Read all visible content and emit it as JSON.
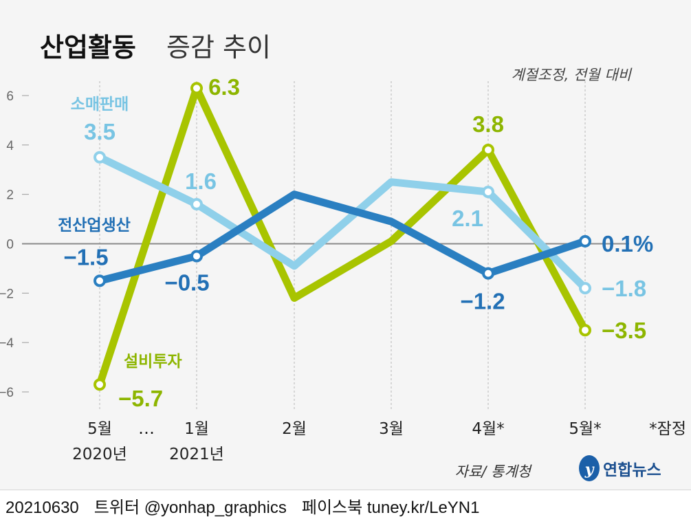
{
  "title_bold": "산업활동",
  "title_rest": "증감 추이",
  "note": "계절조정, 전월 대비",
  "provisional_note": "*잠정",
  "source": "자료/ 통계청",
  "logo_text": "연합뉴스",
  "footer": {
    "date": "20210630",
    "twitter": "트위터 @yonhap_graphics",
    "facebook": "페이스북 tuney.kr/LeYN1"
  },
  "ellipsis": "…",
  "chart_data": {
    "type": "line",
    "categories": [
      "5월",
      "1월",
      "2월",
      "3월",
      "4월*",
      "5월*"
    ],
    "x_years": [
      "2020년",
      "2021년",
      "",
      "",
      "",
      ""
    ],
    "yticks": [
      "6",
      "4",
      "2",
      "0",
      "−2",
      "−4",
      "−6"
    ],
    "ylim": [
      -6,
      6
    ],
    "grid": true,
    "series": [
      {
        "name": "설비투자",
        "color": "#a8c400",
        "label_color": "#8db500",
        "values": [
          -5.7,
          6.3,
          -2.2,
          0.1,
          3.8,
          -3.5
        ],
        "labels": [
          "−5.7",
          "6.3",
          "",
          "",
          "3.8",
          "−3.5"
        ]
      },
      {
        "name": "소매판매",
        "color": "#8fd0ea",
        "label_color": "#78c4e3",
        "values": [
          3.5,
          1.6,
          -0.9,
          2.5,
          2.1,
          -1.8
        ],
        "labels": [
          "3.5",
          "1.6",
          "",
          "",
          "2.1",
          "−1.8"
        ]
      },
      {
        "name": "전산업생산",
        "color": "#2a7fc1",
        "label_color": "#2270b5",
        "values": [
          -1.5,
          -0.5,
          2.0,
          0.9,
          -1.2,
          0.1
        ],
        "labels": [
          "−1.5",
          "−0.5",
          "",
          "",
          "−1.2",
          "0.1%"
        ]
      }
    ]
  }
}
